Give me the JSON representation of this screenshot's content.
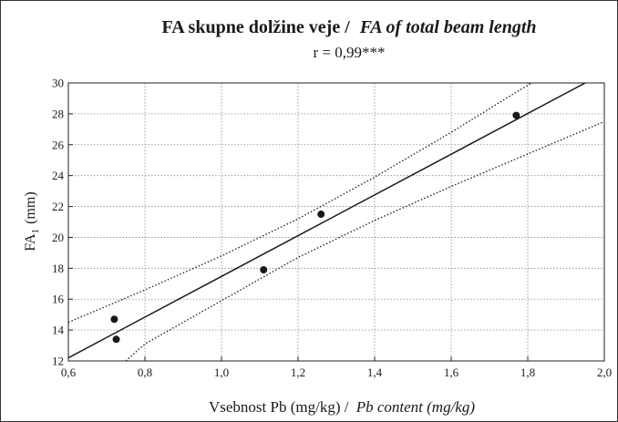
{
  "chart_data": {
    "type": "scatter",
    "title": "FA skupne dolžine veje / ",
    "title_italic": "FA of total beam length",
    "subtitle": "r = 0,99***",
    "x_label": "Vsebnost Pb (mg/kg) / ",
    "x_label_italic": "Pb content (mg/kg)",
    "y_label": "FA",
    "y_label_sub": "1",
    "y_label_unit": "(mm)",
    "xlim": [
      0.6,
      2.0
    ],
    "ylim": [
      12,
      30
    ],
    "xticks": [
      {
        "value": 0.6,
        "label": "0,6"
      },
      {
        "value": 0.8,
        "label": "0,8"
      },
      {
        "value": 1.0,
        "label": "1,0"
      },
      {
        "value": 1.2,
        "label": "1,2"
      },
      {
        "value": 1.4,
        "label": "1,4"
      },
      {
        "value": 1.6,
        "label": "1,6"
      },
      {
        "value": 1.8,
        "label": "1,8"
      },
      {
        "value": 2.0,
        "label": "2,0"
      }
    ],
    "yticks": [
      12,
      14,
      16,
      18,
      20,
      22,
      24,
      26,
      28,
      30
    ],
    "grid": true,
    "series": [
      {
        "style": "points",
        "color": "#1a1a1a",
        "x": [
          0.72,
          0.725,
          1.11,
          1.26,
          1.77
        ],
        "values": [
          14.7,
          13.4,
          17.9,
          21.5,
          27.9
        ]
      },
      {
        "style": "solid",
        "color": "#1a1a1a",
        "x": [
          0.6,
          1.95
        ],
        "values": [
          12.2,
          30
        ]
      },
      {
        "style": "dotted",
        "color": "#1a1a1a",
        "x": [
          0.6,
          0.8,
          1.0,
          1.2,
          1.4,
          1.6,
          1.75,
          1.81
        ],
        "values": [
          14.5,
          16.6,
          18.8,
          21.2,
          23.9,
          26.8,
          29.1,
          30
        ]
      },
      {
        "style": "dotted",
        "color": "#1a1a1a",
        "x": [
          0.75,
          0.8,
          1.0,
          1.2,
          1.4,
          1.6,
          1.8,
          2.0
        ],
        "values": [
          12,
          13.1,
          15.9,
          18.7,
          21.1,
          23.3,
          25.4,
          27.5
        ]
      }
    ]
  }
}
